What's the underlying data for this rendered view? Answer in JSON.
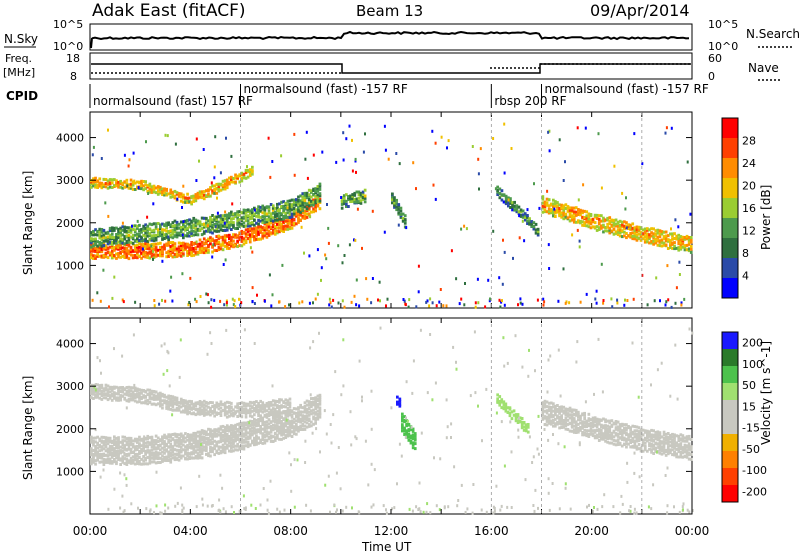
{
  "header": {
    "title": "Adak East (fitACF)",
    "beam": "Beam 13",
    "date": "09/Apr/2014"
  },
  "panels": {
    "nsky_label": "N.Sky",
    "nsearch_label": "N.Search",
    "freq_label_line1": "Freq.",
    "freq_label_line2": "[MHz]",
    "nave_label": "Nave",
    "cpid_label": "CPID",
    "nsky_ticks": [
      "10^5",
      "10^0"
    ],
    "nsearch_ticks": [
      "10^5",
      "10^0"
    ],
    "freq_ticks": [
      "18",
      "8"
    ],
    "nave_ticks": [
      "60",
      "0"
    ]
  },
  "cpid_segments": [
    {
      "label": "normalsound (fast) 157 RF",
      "start": 0.0,
      "end": 6.0
    },
    {
      "label": "normalsound (fast) -157 RF",
      "start": 6.0,
      "end": 16.0
    },
    {
      "label": "rbsp 200 RF",
      "start": 16.0,
      "end": 18.0
    },
    {
      "label": "normalsound (fast) -157 RF",
      "start": 18.0,
      "end": 24.0
    }
  ],
  "colors": {
    "power": [
      "#0000ff",
      "#2a4aa8",
      "#2f6f3f",
      "#4d9a4d",
      "#9acd32",
      "#f0c000",
      "#ff8c00",
      "#ff4000",
      "#ff0000"
    ],
    "velocity": [
      "#1a1aff",
      "#2a7a2a",
      "#4cc24c",
      "#a0e070",
      "#c8c8c0",
      "#c8c8c0",
      "#f0b000",
      "#ff8000",
      "#ff4000",
      "#ff0000"
    ]
  },
  "chart_data": [
    {
      "type": "heatmap",
      "title": "Power",
      "xlabel": "Time UT",
      "ylabel": "Slant Range [km]",
      "xlim": [
        0,
        24
      ],
      "ylim": [
        0,
        4600
      ],
      "x_ticks": [
        "00:00",
        "04:00",
        "08:00",
        "12:00",
        "16:00",
        "20:00",
        "00:00"
      ],
      "y_ticks": [
        "1000",
        "2000",
        "3000",
        "4000"
      ],
      "colorbar_label": "Power [dB]",
      "colorbar_ticks": [
        "4",
        "8",
        "12",
        "16",
        "20",
        "24",
        "28"
      ],
      "bands": [
        {
          "x": [
            0.0,
            2.0,
            4.0,
            6.0,
            8.0,
            9.2
          ],
          "y": [
            1400,
            1400,
            1450,
            1700,
            2100,
            2600
          ],
          "width": 350,
          "value": 26
        },
        {
          "x": [
            0.0,
            2.0,
            4.0,
            6.0,
            8.0,
            9.2
          ],
          "y": [
            1700,
            1800,
            1950,
            2150,
            2400,
            2800
          ],
          "width": 420,
          "value": 14
        },
        {
          "x": [
            0.0,
            2.0,
            4.0,
            5.5,
            6.5
          ],
          "y": [
            3000,
            2950,
            2600,
            3000,
            3300
          ],
          "width": 220,
          "value": 22
        },
        {
          "x": [
            10.0,
            11.0
          ],
          "y": [
            2550,
            2700
          ],
          "width": 300,
          "value": 14
        },
        {
          "x": [
            12.0,
            12.6
          ],
          "y": [
            2650,
            2000
          ],
          "width": 280,
          "value": 12
        },
        {
          "x": [
            16.2,
            17.3,
            17.9
          ],
          "y": [
            2800,
            2200,
            1800
          ],
          "width": 220,
          "value": 12
        },
        {
          "x": [
            18.0,
            19.0,
            20.0,
            21.0,
            22.0,
            23.0,
            24.0
          ],
          "y": [
            2500,
            2300,
            2100,
            1950,
            1800,
            1650,
            1550
          ],
          "width": 380,
          "value": 22
        }
      ]
    },
    {
      "type": "heatmap",
      "title": "Velocity",
      "xlabel": "Time UT",
      "ylabel": "Slant Range [km]",
      "xlim": [
        0,
        24
      ],
      "ylim": [
        0,
        4600
      ],
      "x_ticks": [
        "00:00",
        "04:00",
        "08:00",
        "12:00",
        "16:00",
        "20:00",
        "00:00"
      ],
      "y_ticks": [
        "1000",
        "2000",
        "3000",
        "4000"
      ],
      "colorbar_label": "Velocity [m s^-1]",
      "colorbar_ticks": [
        "200",
        "100",
        "50",
        "15",
        "-15",
        "-50",
        "-100",
        "-200"
      ],
      "bands": [
        {
          "x": [
            0.0,
            2.0,
            4.0,
            6.0,
            8.0,
            9.2
          ],
          "y": [
            1550,
            1550,
            1650,
            1900,
            2200,
            2600
          ],
          "width": 650,
          "value": 0
        },
        {
          "x": [
            0.0,
            2.0,
            4.0,
            6.0,
            8.0
          ],
          "y": [
            2950,
            2850,
            2550,
            2500,
            2600
          ],
          "width": 350,
          "value": 0
        },
        {
          "x": [
            12.2,
            12.4
          ],
          "y": [
            2750,
            2600
          ],
          "width": 250,
          "value": 220
        },
        {
          "x": [
            12.4,
            13.0
          ],
          "y": [
            2200,
            1700
          ],
          "width": 450,
          "value": 60
        },
        {
          "x": [
            16.2,
            17.5
          ],
          "y": [
            2750,
            2000
          ],
          "width": 250,
          "value": 30
        },
        {
          "x": [
            18.0,
            19.0,
            20.0,
            21.0,
            22.0,
            23.0,
            24.0
          ],
          "y": [
            2450,
            2300,
            2100,
            1950,
            1800,
            1700,
            1600
          ],
          "width": 550,
          "value": 0
        }
      ]
    }
  ],
  "footer": {
    "xaxis_title": "Time UT",
    "power_colorbar_label": "Power [dB]",
    "velocity_colorbar_label": "Velocity [m s^-1]"
  }
}
